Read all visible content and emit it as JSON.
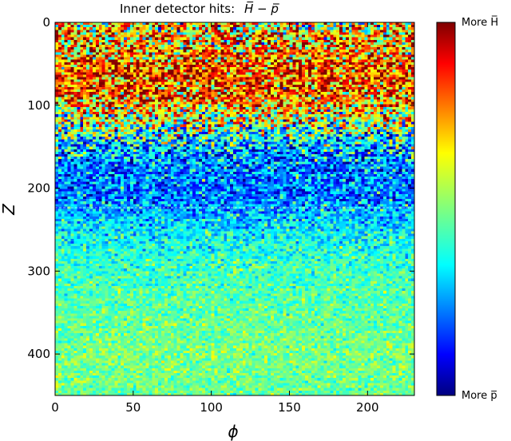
{
  "chart_data": {
    "type": "heatmap",
    "title": "Inner detector hits:",
    "title_math": "H̅ − p̅",
    "xlabel": "ϕ",
    "ylabel": "Z",
    "xlim": [
      0,
      230
    ],
    "ylim": [
      0,
      450
    ],
    "y_inverted": true,
    "xticks": [
      "0",
      "50",
      "100",
      "150",
      "200"
    ],
    "xtick_values": [
      0,
      50,
      100,
      150,
      200
    ],
    "yticks": [
      "0",
      "100",
      "200",
      "300",
      "400"
    ],
    "ytick_values": [
      0,
      100,
      200,
      300,
      400
    ],
    "grid": false,
    "colormap": "jet",
    "colorbar": {
      "top_label": "More H̅",
      "bottom_label": "More p̅"
    },
    "bin_size": [
      2,
      3
    ],
    "row_profile": {
      "description_free_fields": true,
      "z": [
        0,
        30,
        60,
        90,
        120,
        150,
        180,
        210,
        240,
        270,
        300,
        350,
        400,
        450
      ],
      "mean": [
        0.62,
        0.72,
        0.82,
        0.78,
        0.55,
        0.3,
        0.25,
        0.24,
        0.34,
        0.4,
        0.44,
        0.47,
        0.5,
        0.48
      ],
      "spread": [
        0.3,
        0.28,
        0.24,
        0.25,
        0.28,
        0.22,
        0.15,
        0.14,
        0.11,
        0.09,
        0.08,
        0.07,
        0.07,
        0.07
      ]
    },
    "colors": {
      "jet_stops": [
        "#00007f",
        "#0000ff",
        "#007fff",
        "#00ffff",
        "#7fff7f",
        "#ffff00",
        "#ff7f00",
        "#ff0000",
        "#7f0000"
      ]
    }
  }
}
